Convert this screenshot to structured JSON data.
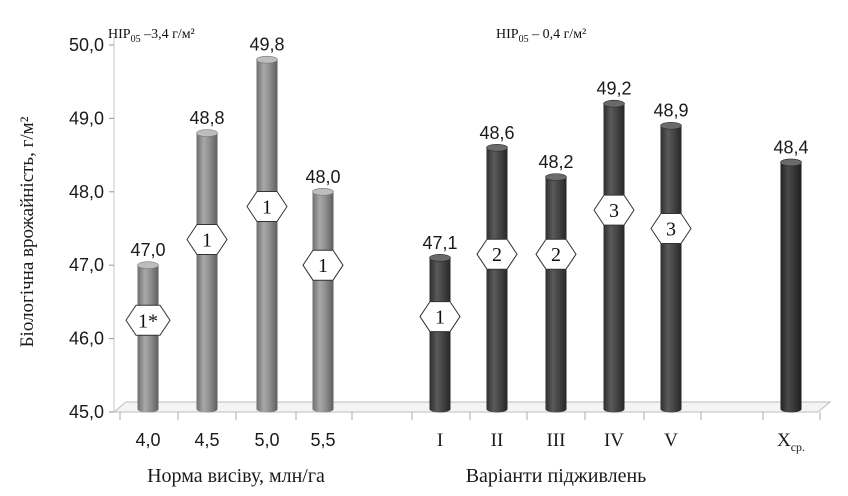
{
  "chart_data": {
    "type": "bar",
    "ylabel": "Біологічна врожайність, г/м²",
    "ylim": [
      45,
      50
    ],
    "y_ticks": [
      "45,0",
      "46,0",
      "47,0",
      "48,0",
      "49,0",
      "50,0"
    ],
    "groups": [
      {
        "name": "Норма висіву, млн/га",
        "lsd": "НІР₀₅ –3,4 г/м²",
        "color": "#8c8c8c",
        "categories": [
          "4,0",
          "4,5",
          "5,0",
          "5,5"
        ],
        "values": [
          47.0,
          48.8,
          49.8,
          48.0
        ],
        "value_labels": [
          "47,0",
          "48,8",
          "49,8",
          "48,0"
        ],
        "badges": [
          "1*",
          "1",
          "1",
          "1"
        ],
        "badge_levels": [
          46.25,
          47.35,
          47.8,
          47.0
        ]
      },
      {
        "name": "Варіанти підживлень",
        "lsd": "НІР₀₅ – 0,4 г/м²",
        "color": "#4a4a4a",
        "categories": [
          "I",
          "II",
          "III",
          "IV",
          "V"
        ],
        "values": [
          47.1,
          48.6,
          48.2,
          49.2,
          48.9
        ],
        "value_labels": [
          "47,1",
          "48,6",
          "48,2",
          "49,2",
          "48,9"
        ],
        "badges": [
          "1",
          "2",
          "2",
          "3",
          "3"
        ],
        "badge_levels": [
          46.3,
          47.15,
          47.15,
          47.75,
          47.5
        ]
      },
      {
        "name": "",
        "lsd": "",
        "color": "#333333",
        "categories": [
          "Xср."
        ],
        "values": [
          48.4
        ],
        "value_labels": [
          "48,4"
        ],
        "badges": [],
        "badge_levels": []
      }
    ],
    "grid": false,
    "legend": "none"
  }
}
